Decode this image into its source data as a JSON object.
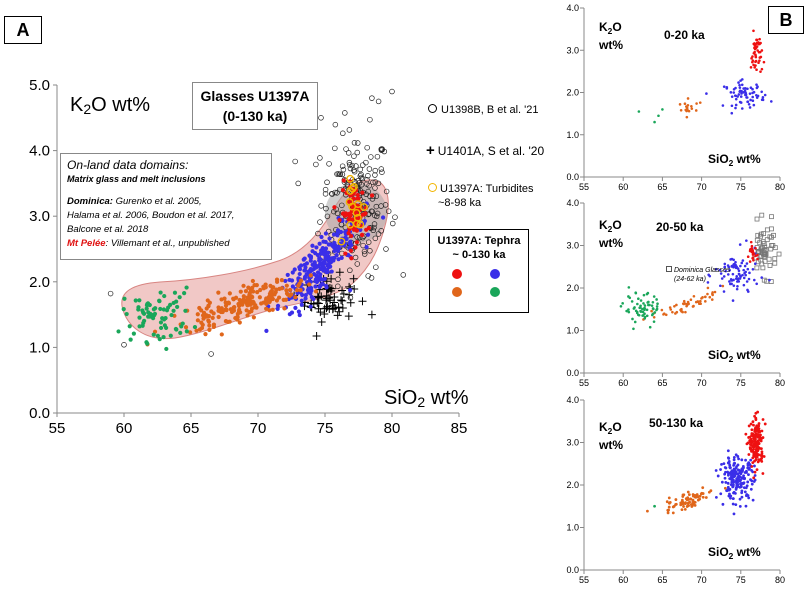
{
  "panel_a_label": "A",
  "panel_b_label": "B",
  "colors": {
    "red": "#ee1111",
    "blue": "#3a2ee8",
    "orange": "#e0661b",
    "green": "#1aa65a",
    "domain_fill": "#e8a3a0",
    "grey_zone": "#a8a8a8",
    "turbidite": "#f2b500"
  },
  "main": {
    "ylabel_main": "K",
    "ylabel_sub": "2",
    "ylabel_rest": "O wt%",
    "xlabel_main": "SiO",
    "xlabel_sub": "2",
    "xlabel_rest": " wt%",
    "title_line1": "Glasses U1397A",
    "title_line2": "(0-130 ka)",
    "onland_heading": "On-land data domains:",
    "onland_sub": "Matrix glass and melt inclusions",
    "dominica_label": "Dominica:",
    "dominica_refs_1": "Gurenko et al. 2005,",
    "dominica_refs_2": "Halama et al. 2006, Boudon et al. 2017,",
    "dominica_refs_3": "Balcone et al. 2018",
    "pelee_label": "Mt Pelée",
    "pelee_refs": ": Villemant et al., unpublished",
    "legend_u1398b": "U1398B, B et al. '21",
    "legend_u1401a": "U1401A, S et al. '20",
    "legend_turb_1": "U1397A: Turbidites",
    "legend_turb_2": "~8-98 ka",
    "tephra_title_1": "U1397A: Tephra",
    "tephra_title_2": "~ 0-130 ka"
  },
  "sub_panels": [
    {
      "title": "0-20 ka",
      "ylabel_1": "K",
      "ylabel_1_sub": "2",
      "ylabel_1_rest": "O",
      "ylabel_2": "wt%",
      "xlabel": "SiO",
      "xlabel_sub": "2",
      "xlabel_rest": " wt%"
    },
    {
      "title": "20-50 ka",
      "ylabel_1": "K",
      "ylabel_1_sub": "2",
      "ylabel_1_rest": "O",
      "ylabel_2": "wt%",
      "xlabel": "SiO",
      "xlabel_sub": "2",
      "xlabel_rest": " wt%",
      "annotation_1": "Dominica Glasses",
      "annotation_2": "(24-62 ka)"
    },
    {
      "title": "50-130 ka",
      "ylabel_1": "K",
      "ylabel_1_sub": "2",
      "ylabel_1_rest": "O",
      "ylabel_2": "wt%",
      "xlabel": "SiO",
      "xlabel_sub": "2",
      "xlabel_rest": " wt%"
    }
  ],
  "chart_data": [
    {
      "type": "scatter",
      "title": "Glasses U1397A (0-130 ka)",
      "xlabel": "SiO2 wt%",
      "ylabel": "K2O wt%",
      "xlim": [
        55,
        85
      ],
      "ylim": [
        0,
        5
      ],
      "xticks": [
        "55",
        "60",
        "65",
        "70",
        "75",
        "80",
        "85"
      ],
      "yticks": [
        "0.0",
        "1.0",
        "2.0",
        "3.0",
        "4.0",
        "5.0"
      ],
      "series": [
        {
          "name": "Tephra red",
          "color": "red",
          "clusters": [
            {
              "cx": 77.2,
              "cy": 3.05,
              "sx": 0.5,
              "sy": 0.22,
              "n": 90
            }
          ]
        },
        {
          "name": "Tephra blue",
          "color": "blue",
          "clusters": [
            {
              "cx": 74.6,
              "cy": 2.35,
              "sx": 1.5,
              "sy": 0.28,
              "n": 230
            }
          ]
        },
        {
          "name": "Tephra orange",
          "color": "orange",
          "clusters": [
            {
              "cx": 68.6,
              "cy": 1.65,
              "sx": 2.4,
              "sy": 0.18,
              "n": 190
            }
          ]
        },
        {
          "name": "Tephra green",
          "color": "green",
          "clusters": [
            {
              "cx": 62.5,
              "cy": 1.5,
              "sx": 1.3,
              "sy": 0.2,
              "n": 75
            }
          ]
        },
        {
          "name": "U1398B, B et al. '21",
          "marker": "open-circle",
          "clusters": [
            {
              "cx": 77.3,
              "cy": 3.2,
              "sx": 1.3,
              "sy": 0.55,
              "n": 200
            }
          ],
          "extra_points": [
            [
              59,
              1.82
            ],
            [
              60,
              1.04
            ],
            [
              66.5,
              0.9
            ],
            [
              78.5,
              4.8
            ],
            [
              79,
              4.75
            ],
            [
              80,
              4.9
            ],
            [
              74.7,
              4.5
            ],
            [
              73,
              3.5
            ]
          ]
        },
        {
          "name": "U1401A, S et al. '20",
          "marker": "plus",
          "clusters": [
            {
              "cx": 75.3,
              "cy": 1.75,
              "sx": 0.9,
              "sy": 0.17,
              "n": 65
            }
          ],
          "extra_points": [
            [
              78.5,
              1.5
            ]
          ]
        },
        {
          "name": "U1397A: Turbidites ~8-98 ka",
          "marker": "open-circle",
          "color": "turbidite",
          "clusters": [
            {
              "cx": 77.5,
              "cy": 3.05,
              "sx": 0.45,
              "sy": 0.25,
              "n": 14
            }
          ]
        }
      ],
      "annotations": [
        "On-land data domains",
        "Dominica",
        "Mt Pelée"
      ]
    },
    {
      "type": "scatter",
      "title": "0-20 ka",
      "xlabel": "SiO2 wt%",
      "ylabel": "K2O wt%",
      "xlim": [
        55,
        80
      ],
      "ylim": [
        0,
        4
      ],
      "xticks": [
        "55",
        "60",
        "65",
        "70",
        "75",
        "80"
      ],
      "yticks": [
        "0.0",
        "1.0",
        "2.0",
        "3.0",
        "4.0"
      ],
      "series": [
        {
          "name": "red",
          "color": "red",
          "clusters": [
            {
              "cx": 77.0,
              "cy": 2.9,
              "sx": 0.35,
              "sy": 0.25,
              "n": 45
            }
          ]
        },
        {
          "name": "blue",
          "color": "blue",
          "clusters": [
            {
              "cx": 75.5,
              "cy": 1.95,
              "sx": 1.3,
              "sy": 0.15,
              "n": 70
            }
          ]
        },
        {
          "name": "orange",
          "color": "orange",
          "clusters": [
            {
              "cx": 68.5,
              "cy": 1.5,
              "sx": 1.0,
              "sy": 0.12,
              "n": 18
            }
          ]
        },
        {
          "name": "green",
          "color": "green",
          "clusters": [],
          "extra_points": [
            [
              62,
              1.55
            ],
            [
              64,
              1.3
            ],
            [
              64.5,
              1.45
            ],
            [
              65,
              1.6
            ]
          ]
        }
      ]
    },
    {
      "type": "scatter",
      "title": "20-50 ka",
      "xlabel": "SiO2 wt%",
      "ylabel": "K2O wt%",
      "xlim": [
        55,
        80
      ],
      "ylim": [
        0,
        4
      ],
      "xticks": [
        "55",
        "60",
        "65",
        "70",
        "75",
        "80"
      ],
      "yticks": [
        "0.0",
        "1.0",
        "2.0",
        "3.0",
        "4.0"
      ],
      "series": [
        {
          "name": "Dominica Glasses (24-62 ka)",
          "marker": "open-square",
          "clusters": [
            {
              "cx": 78.0,
              "cy": 2.9,
              "sx": 0.8,
              "sy": 0.3,
              "n": 55
            }
          ]
        },
        {
          "name": "red",
          "color": "red",
          "clusters": [
            {
              "cx": 76.5,
              "cy": 2.8,
              "sx": 0.3,
              "sy": 0.1,
              "n": 25
            }
          ]
        },
        {
          "name": "blue",
          "color": "blue",
          "clusters": [
            {
              "cx": 74.5,
              "cy": 2.3,
              "sx": 1.4,
              "sy": 0.28,
              "n": 85
            }
          ]
        },
        {
          "name": "orange",
          "color": "orange",
          "clusters": [
            {
              "cx": 68.0,
              "cy": 1.65,
              "sx": 1.8,
              "sy": 0.12,
              "n": 55
            }
          ]
        },
        {
          "name": "green",
          "color": "green",
          "clusters": [
            {
              "cx": 62.5,
              "cy": 1.5,
              "sx": 1.2,
              "sy": 0.18,
              "n": 65
            }
          ]
        }
      ]
    },
    {
      "type": "scatter",
      "title": "50-130 ka",
      "xlabel": "SiO2 wt%",
      "ylabel": "K2O wt%",
      "xlim": [
        55,
        80
      ],
      "ylim": [
        0,
        4
      ],
      "xticks": [
        "55",
        "60",
        "65",
        "70",
        "75",
        "80"
      ],
      "yticks": [
        "0.0",
        "1.0",
        "2.0",
        "3.0",
        "4.0"
      ],
      "series": [
        {
          "name": "red",
          "color": "red",
          "clusters": [
            {
              "cx": 77.0,
              "cy": 2.95,
              "sx": 0.45,
              "sy": 0.28,
              "n": 160
            }
          ]
        },
        {
          "name": "blue",
          "color": "blue",
          "clusters": [
            {
              "cx": 74.5,
              "cy": 2.15,
              "sx": 1.1,
              "sy": 0.25,
              "n": 190
            }
          ]
        },
        {
          "name": "orange",
          "color": "orange",
          "clusters": [
            {
              "cx": 68.5,
              "cy": 1.7,
              "sx": 1.6,
              "sy": 0.15,
              "n": 80
            }
          ]
        },
        {
          "name": "green",
          "color": "green",
          "clusters": [],
          "extra_points": [
            [
              64,
              1.5
            ]
          ]
        }
      ]
    }
  ]
}
